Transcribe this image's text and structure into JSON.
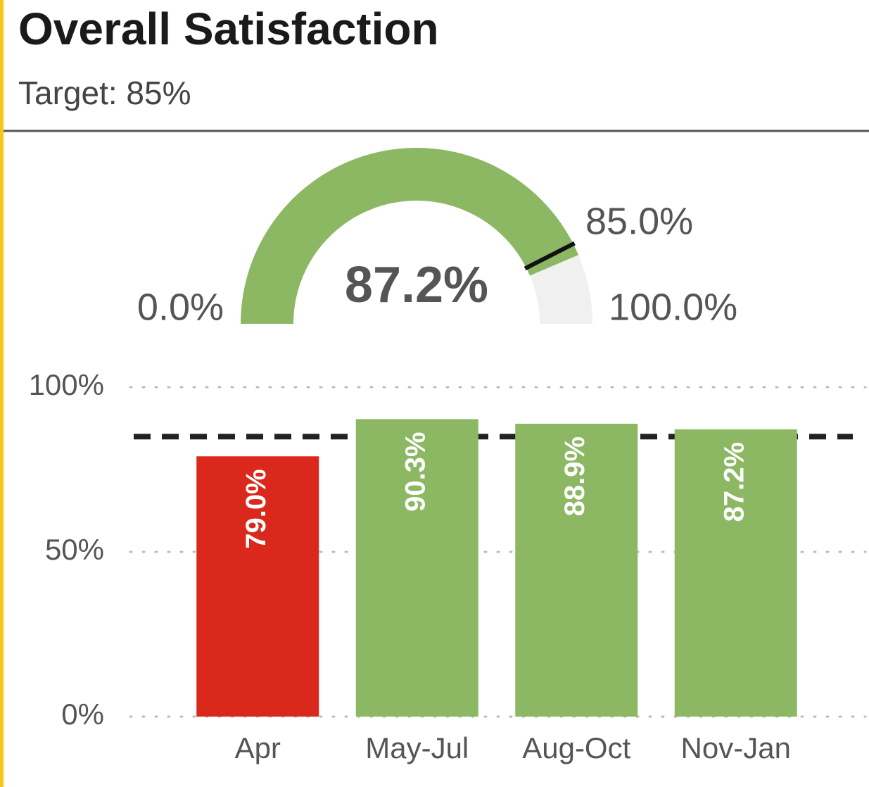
{
  "header": {
    "title": "Overall Satisfaction",
    "subtitle": "Target: 85%"
  },
  "chart_data": [
    {
      "type": "gauge",
      "value": 87.2,
      "value_label": "87.2%",
      "range": [
        0,
        100
      ],
      "range_labels": [
        "0.0%",
        "100.0%"
      ],
      "target": 85,
      "target_label": "85.0%",
      "color": "#8cb863",
      "track_color": "#f0f0f0",
      "target_color": "#111111"
    },
    {
      "type": "bar",
      "categories": [
        "Apr",
        "May-Jul",
        "Aug-Oct",
        "Nov-Jan"
      ],
      "values": [
        79.0,
        90.3,
        88.9,
        87.2
      ],
      "value_labels": [
        "79.0%",
        "90.3%",
        "88.9%",
        "87.2%"
      ],
      "colors": [
        "#da291c",
        "#8cb863",
        "#8cb863",
        "#8cb863"
      ],
      "ylim": [
        0,
        100
      ],
      "yticks": [
        {
          "value": 0,
          "label": "0%"
        },
        {
          "value": 50,
          "label": "50%"
        },
        {
          "value": 100,
          "label": "100%"
        }
      ],
      "target": 85,
      "target_color": "#222222",
      "grid": true
    }
  ]
}
